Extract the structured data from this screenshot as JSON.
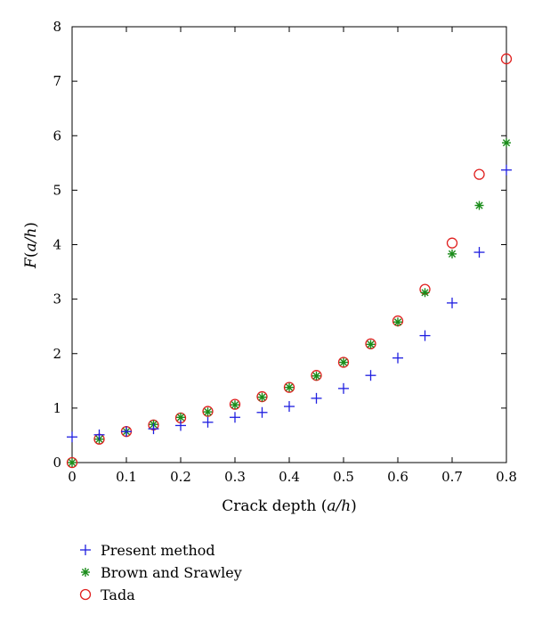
{
  "chart_data": {
    "type": "scatter",
    "xlabel": "Crack depth (a/h)",
    "ylabel": "F(a/h)",
    "xlim": [
      0,
      0.8
    ],
    "ylim": [
      0,
      8
    ],
    "x_ticks": [
      "0",
      "0.1",
      "0.2",
      "0.3",
      "0.4",
      "0.5",
      "0.6",
      "0.7",
      "0.8"
    ],
    "y_ticks": [
      "0",
      "1",
      "2",
      "3",
      "4",
      "5",
      "6",
      "7",
      "8"
    ],
    "grid": false,
    "legend_position": "below",
    "series": [
      {
        "name": "Present method",
        "marker": "plus",
        "color": "#1f1fe0",
        "x": [
          0,
          0.05,
          0.1,
          0.15,
          0.2,
          0.25,
          0.3,
          0.35,
          0.4,
          0.45,
          0.5,
          0.55,
          0.6,
          0.65,
          0.7,
          0.75,
          0.8
        ],
        "y": [
          0.47,
          0.51,
          0.57,
          0.62,
          0.68,
          0.74,
          0.83,
          0.92,
          1.03,
          1.18,
          1.36,
          1.6,
          1.92,
          2.33,
          2.93,
          3.86,
          5.37
        ]
      },
      {
        "name": "Brown and Srawley",
        "marker": "asterisk",
        "color": "#1a8c1a",
        "x": [
          0,
          0.05,
          0.1,
          0.15,
          0.2,
          0.25,
          0.3,
          0.35,
          0.4,
          0.45,
          0.5,
          0.55,
          0.6,
          0.65,
          0.7,
          0.75,
          0.8
        ],
        "y": [
          0,
          0.43,
          0.57,
          0.7,
          0.83,
          0.93,
          1.06,
          1.2,
          1.38,
          1.59,
          1.84,
          2.17,
          2.58,
          3.12,
          3.83,
          4.72,
          5.87
        ]
      },
      {
        "name": "Tada",
        "marker": "circle",
        "color": "#e0201f",
        "x": [
          0,
          0.05,
          0.1,
          0.15,
          0.2,
          0.25,
          0.3,
          0.35,
          0.4,
          0.45,
          0.5,
          0.55,
          0.6,
          0.65,
          0.7,
          0.75,
          0.8
        ],
        "y": [
          0,
          0.43,
          0.57,
          0.69,
          0.82,
          0.94,
          1.07,
          1.21,
          1.38,
          1.6,
          1.84,
          2.18,
          2.6,
          3.18,
          4.03,
          5.29,
          7.41
        ]
      }
    ]
  }
}
